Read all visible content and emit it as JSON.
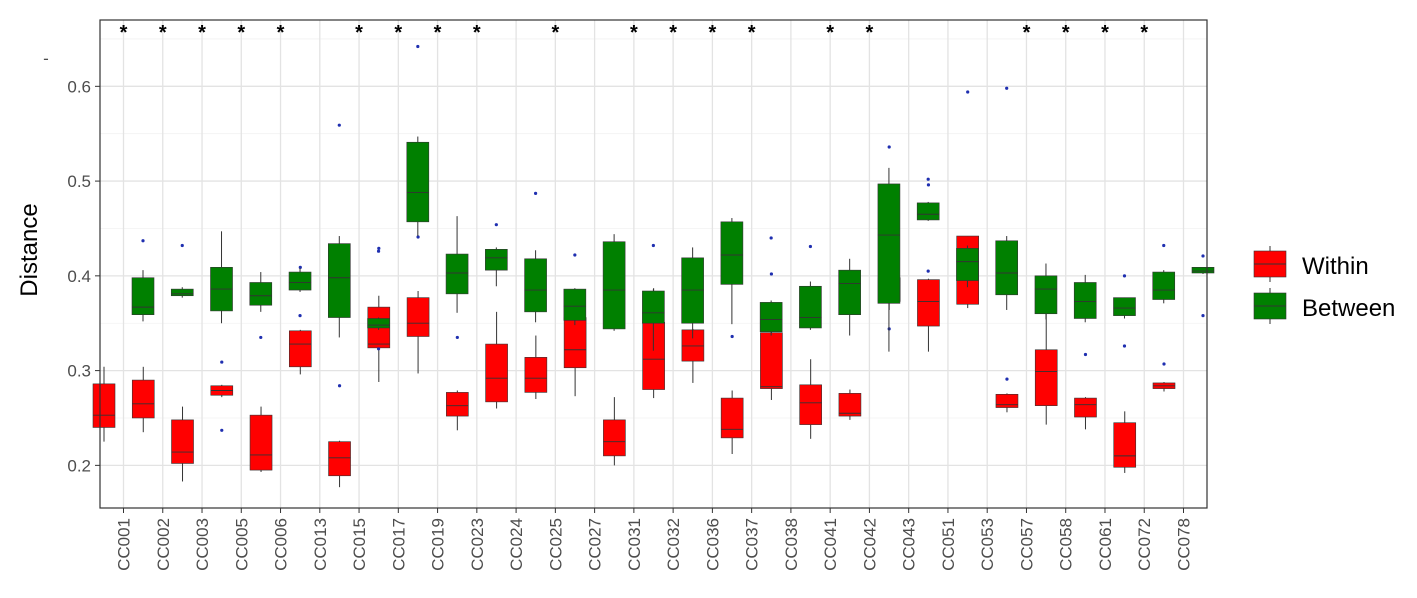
{
  "chart_data": {
    "type": "boxplot",
    "xlabel": "",
    "ylabel": "Distance",
    "ylim": [
      0.155,
      0.67
    ],
    "yticks": [
      0.2,
      0.3,
      0.4,
      0.5,
      0.6
    ],
    "ytick_labels": [
      "0.2",
      "0.3",
      "0.4",
      "0.5",
      "0.6"
    ],
    "grid": true,
    "legend_position": "right",
    "significance_marker": "*",
    "stray_tick_label": "-",
    "categories": [
      "CC001",
      "CC002",
      "CC003",
      "CC005",
      "CC006",
      "CC013",
      "CC015",
      "CC017",
      "CC019",
      "CC023",
      "CC024",
      "CC025",
      "CC027",
      "CC031",
      "CC032",
      "CC036",
      "CC037",
      "CC038",
      "CC041",
      "CC042",
      "CC043",
      "CC051",
      "CC053",
      "CC057",
      "CC058",
      "CC061",
      "CC072",
      "CC078"
    ],
    "significant": [
      true,
      true,
      true,
      true,
      true,
      false,
      true,
      true,
      true,
      true,
      false,
      true,
      false,
      true,
      true,
      true,
      true,
      false,
      true,
      true,
      false,
      false,
      false,
      true,
      true,
      true,
      true,
      false
    ],
    "series": [
      {
        "name": "Within",
        "color": "#ff0000",
        "boxes": [
          {
            "min": 0.225,
            "q1": 0.24,
            "median": 0.253,
            "q3": 0.286,
            "max": 0.304,
            "outliers": []
          },
          {
            "min": 0.235,
            "q1": 0.25,
            "median": 0.265,
            "q3": 0.29,
            "max": 0.304,
            "outliers": []
          },
          {
            "min": 0.183,
            "q1": 0.202,
            "median": 0.214,
            "q3": 0.248,
            "max": 0.262,
            "outliers": []
          },
          {
            "min": 0.272,
            "q1": 0.274,
            "median": 0.279,
            "q3": 0.284,
            "max": 0.285,
            "outliers": [
              0.309,
              0.237
            ]
          },
          {
            "min": 0.193,
            "q1": 0.195,
            "median": 0.211,
            "q3": 0.253,
            "max": 0.262,
            "outliers": []
          },
          {
            "min": 0.296,
            "q1": 0.304,
            "median": 0.328,
            "q3": 0.342,
            "max": 0.343,
            "outliers": [
              0.409
            ]
          },
          {
            "min": 0.177,
            "q1": 0.189,
            "median": 0.208,
            "q3": 0.225,
            "max": 0.226,
            "outliers": [
              0.284
            ]
          },
          {
            "min": 0.288,
            "q1": 0.324,
            "median": 0.328,
            "q3": 0.367,
            "max": 0.379,
            "outliers": [
              0.429
            ]
          },
          {
            "min": 0.297,
            "q1": 0.336,
            "median": 0.35,
            "q3": 0.377,
            "max": 0.384,
            "outliers": [
              0.441
            ]
          },
          {
            "min": 0.237,
            "q1": 0.252,
            "median": 0.263,
            "q3": 0.277,
            "max": 0.279,
            "outliers": [
              0.335
            ]
          },
          {
            "min": 0.26,
            "q1": 0.267,
            "median": 0.292,
            "q3": 0.328,
            "max": 0.362,
            "outliers": []
          },
          {
            "min": 0.27,
            "q1": 0.277,
            "median": 0.292,
            "q3": 0.314,
            "max": 0.337,
            "outliers": []
          },
          {
            "min": 0.273,
            "q1": 0.303,
            "median": 0.322,
            "q3": 0.356,
            "max": 0.366,
            "outliers": []
          },
          {
            "min": 0.2,
            "q1": 0.21,
            "median": 0.225,
            "q3": 0.248,
            "max": 0.272,
            "outliers": []
          },
          {
            "min": 0.271,
            "q1": 0.28,
            "median": 0.312,
            "q3": 0.351,
            "max": 0.387,
            "outliers": []
          },
          {
            "min": 0.287,
            "q1": 0.31,
            "median": 0.326,
            "q3": 0.343,
            "max": 0.344,
            "outliers": [
              0.406
            ]
          },
          {
            "min": 0.212,
            "q1": 0.229,
            "median": 0.238,
            "q3": 0.271,
            "max": 0.279,
            "outliers": [
              0.336
            ]
          },
          {
            "min": 0.269,
            "q1": 0.281,
            "median": 0.283,
            "q3": 0.34,
            "max": 0.356,
            "outliers": [
              0.402
            ]
          },
          {
            "min": 0.228,
            "q1": 0.243,
            "median": 0.266,
            "q3": 0.285,
            "max": 0.312,
            "outliers": []
          },
          {
            "min": 0.248,
            "q1": 0.252,
            "median": 0.255,
            "q3": 0.276,
            "max": 0.28,
            "outliers": []
          },
          {
            "min": 0.364,
            "q1": 0.373,
            "median": 0.39,
            "q3": 0.398,
            "max": 0.398,
            "outliers": [
              0.536,
              0.344
            ]
          },
          {
            "min": 0.32,
            "q1": 0.347,
            "median": 0.373,
            "q3": 0.396,
            "max": 0.397,
            "outliers": [
              0.496
            ]
          },
          {
            "min": 0.366,
            "q1": 0.37,
            "median": 0.402,
            "q3": 0.442,
            "max": 0.442,
            "outliers": [
              0.594
            ]
          },
          {
            "min": 0.256,
            "q1": 0.261,
            "median": 0.264,
            "q3": 0.275,
            "max": 0.276,
            "outliers": [
              0.291
            ]
          },
          {
            "min": 0.243,
            "q1": 0.263,
            "median": 0.299,
            "q3": 0.322,
            "max": 0.371,
            "outliers": []
          },
          {
            "min": 0.238,
            "q1": 0.251,
            "median": 0.264,
            "q3": 0.271,
            "max": 0.272,
            "outliers": [
              0.317
            ]
          },
          {
            "min": 0.192,
            "q1": 0.198,
            "median": 0.21,
            "q3": 0.245,
            "max": 0.257,
            "outliers": []
          },
          {
            "min": 0.278,
            "q1": 0.281,
            "median": 0.284,
            "q3": 0.287,
            "max": 0.288,
            "outliers": [
              0.307
            ]
          }
        ]
      },
      {
        "name": "Between",
        "color": "#008000",
        "boxes": [
          {
            "min": 0.352,
            "q1": 0.359,
            "median": 0.367,
            "q3": 0.398,
            "max": 0.406,
            "outliers": [
              0.437
            ]
          },
          {
            "min": 0.377,
            "q1": 0.379,
            "median": 0.381,
            "q3": 0.386,
            "max": 0.388,
            "outliers": [
              0.432
            ]
          },
          {
            "min": 0.35,
            "q1": 0.363,
            "median": 0.386,
            "q3": 0.409,
            "max": 0.447,
            "outliers": []
          },
          {
            "min": 0.362,
            "q1": 0.369,
            "median": 0.379,
            "q3": 0.393,
            "max": 0.404,
            "outliers": [
              0.335
            ]
          },
          {
            "min": 0.383,
            "q1": 0.385,
            "median": 0.393,
            "q3": 0.404,
            "max": 0.408,
            "outliers": [
              0.358
            ]
          },
          {
            "min": 0.335,
            "q1": 0.356,
            "median": 0.398,
            "q3": 0.434,
            "max": 0.442,
            "outliers": [
              0.559
            ]
          },
          {
            "min": 0.343,
            "q1": 0.345,
            "median": 0.348,
            "q3": 0.355,
            "max": 0.356,
            "outliers": [
              0.426,
              0.323
            ]
          },
          {
            "min": 0.442,
            "q1": 0.457,
            "median": 0.488,
            "q3": 0.541,
            "max": 0.547,
            "outliers": [
              0.642
            ]
          },
          {
            "min": 0.361,
            "q1": 0.381,
            "median": 0.403,
            "q3": 0.423,
            "max": 0.463,
            "outliers": []
          },
          {
            "min": 0.389,
            "q1": 0.406,
            "median": 0.419,
            "q3": 0.428,
            "max": 0.43,
            "outliers": [
              0.454
            ]
          },
          {
            "min": 0.351,
            "q1": 0.362,
            "median": 0.385,
            "q3": 0.418,
            "max": 0.427,
            "outliers": [
              0.487
            ]
          },
          {
            "min": 0.348,
            "q1": 0.353,
            "median": 0.368,
            "q3": 0.386,
            "max": 0.387,
            "outliers": [
              0.422
            ]
          },
          {
            "min": 0.342,
            "q1": 0.344,
            "median": 0.385,
            "q3": 0.436,
            "max": 0.444,
            "outliers": []
          },
          {
            "min": 0.321,
            "q1": 0.35,
            "median": 0.361,
            "q3": 0.384,
            "max": 0.386,
            "outliers": [
              0.432
            ]
          },
          {
            "min": 0.334,
            "q1": 0.35,
            "median": 0.385,
            "q3": 0.419,
            "max": 0.43,
            "outliers": []
          },
          {
            "min": 0.349,
            "q1": 0.391,
            "median": 0.422,
            "q3": 0.457,
            "max": 0.461,
            "outliers": []
          },
          {
            "min": 0.337,
            "q1": 0.341,
            "median": 0.354,
            "q3": 0.372,
            "max": 0.374,
            "outliers": [
              0.44
            ]
          },
          {
            "min": 0.343,
            "q1": 0.345,
            "median": 0.356,
            "q3": 0.389,
            "max": 0.394,
            "outliers": [
              0.431
            ]
          },
          {
            "min": 0.337,
            "q1": 0.359,
            "median": 0.392,
            "q3": 0.406,
            "max": 0.418,
            "outliers": []
          },
          {
            "min": 0.32,
            "q1": 0.371,
            "median": 0.443,
            "q3": 0.497,
            "max": 0.514,
            "outliers": []
          },
          {
            "min": 0.458,
            "q1": 0.459,
            "median": 0.465,
            "q3": 0.477,
            "max": 0.478,
            "outliers": [
              0.502,
              0.405
            ]
          },
          {
            "min": 0.388,
            "q1": 0.395,
            "median": 0.415,
            "q3": 0.429,
            "max": 0.432,
            "outliers": []
          },
          {
            "min": 0.364,
            "q1": 0.38,
            "median": 0.403,
            "q3": 0.437,
            "max": 0.442,
            "outliers": [
              0.598
            ]
          },
          {
            "min": 0.354,
            "q1": 0.36,
            "median": 0.386,
            "q3": 0.4,
            "max": 0.413,
            "outliers": []
          },
          {
            "min": 0.351,
            "q1": 0.355,
            "median": 0.373,
            "q3": 0.393,
            "max": 0.401,
            "outliers": []
          },
          {
            "min": 0.355,
            "q1": 0.358,
            "median": 0.366,
            "q3": 0.377,
            "max": 0.377,
            "outliers": [
              0.4,
              0.326
            ]
          },
          {
            "min": 0.371,
            "q1": 0.375,
            "median": 0.385,
            "q3": 0.404,
            "max": 0.406,
            "outliers": [
              0.432
            ]
          },
          {
            "min": 0.402,
            "q1": 0.403,
            "median": 0.405,
            "q3": 0.409,
            "max": 0.409,
            "outliers": [
              0.421,
              0.358
            ]
          }
        ]
      }
    ]
  }
}
